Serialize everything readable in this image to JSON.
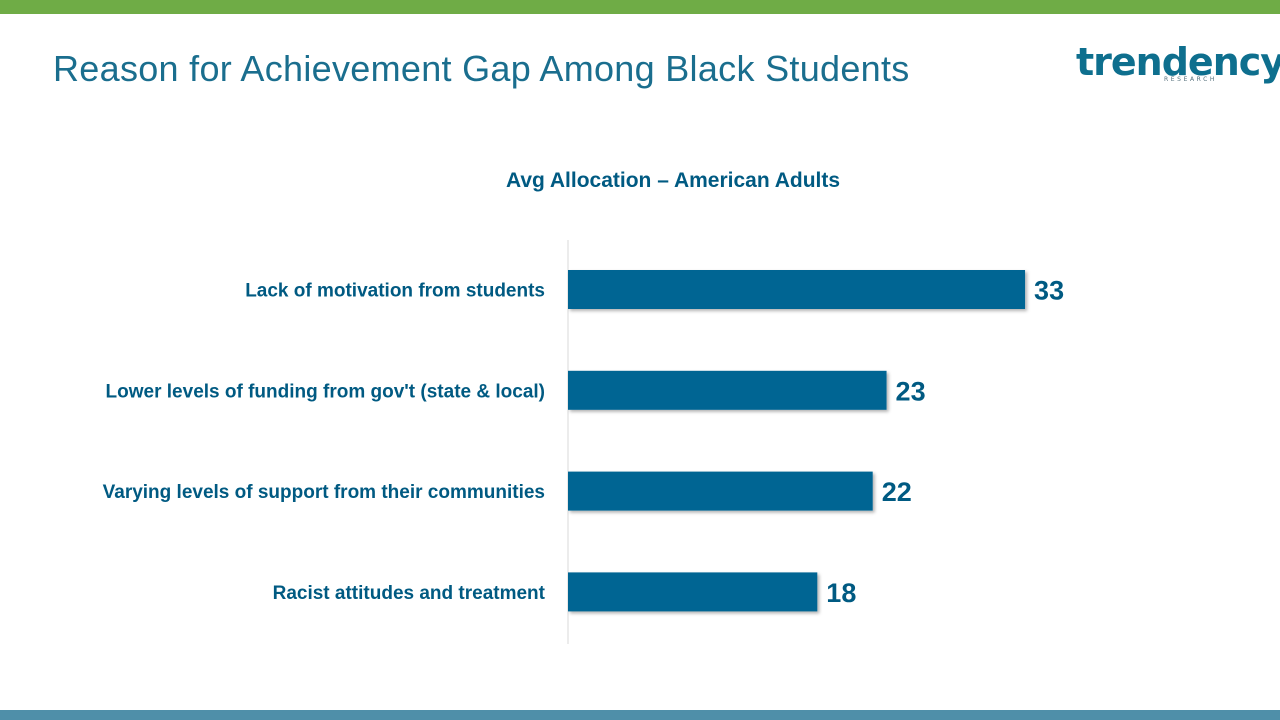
{
  "slide": {
    "title": "Reason for Achievement Gap Among Black Students"
  },
  "logo": {
    "word": "trendency",
    "subtitle": "RESEARCH"
  },
  "colors": {
    "top_bar": "#6fac46",
    "bottom_bar": "#4f8fa9",
    "title_text": "#1a6e8e",
    "bar_fill": "#006593",
    "category_text": "#005a82",
    "value_text": "#005a82",
    "logo_teal": "#0e6f8e",
    "logo_green": "#6fac46",
    "axis_line": "#d9d9d9"
  },
  "chart_data": {
    "type": "bar",
    "orientation": "horizontal",
    "title": "Avg Allocation – American Adults",
    "categories": [
      "Lack of motivation from students",
      "Lower levels of funding from gov't (state & local)",
      "Varying levels of support from their communities",
      "Racist attitudes and treatment"
    ],
    "values": [
      33,
      23,
      22,
      18
    ],
    "xlim": [
      0,
      50
    ],
    "grid": false,
    "legend": "none",
    "data_labels": true
  }
}
